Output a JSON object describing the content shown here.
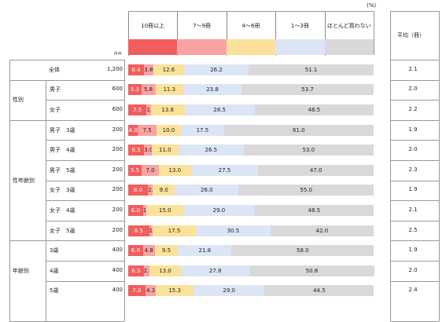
{
  "unit_label": "(%)",
  "n_header": "n=",
  "avg_header": "平均（冊）",
  "colors": {
    "c10plus": "#f25d5d",
    "c7to9": "#f7a3a3",
    "c4to6": "#fbe29a",
    "c1to3": "#dce5f3",
    "cnone": "#d9d9d9"
  },
  "chart_data": {
    "type": "bar",
    "orientation": "horizontal",
    "stacked": true,
    "xlim": [
      0,
      100
    ],
    "categories": [
      10,
      7,
      4,
      1,
      0
    ],
    "legend": [
      "10冊以上",
      "7～9冊",
      "4～6冊",
      "1～3冊",
      "ほとんど買わない"
    ],
    "groups": [
      {
        "label": "",
        "rows": [
          {
            "label": "全体",
            "n": "1,200",
            "values": [
              6.4,
              3.8,
              12.6,
              26.2,
              51.1
            ],
            "avg": "2.1"
          }
        ]
      },
      {
        "label": "性別",
        "rows": [
          {
            "label": "男子",
            "n": "600",
            "values": [
              5.3,
              5.8,
              11.3,
              23.8,
              53.7
            ],
            "avg": "2.0"
          },
          {
            "label": "女子",
            "n": "600",
            "values": [
              7.5,
              1.7,
              13.8,
              28.5,
              48.5
            ],
            "avg": "2.2"
          }
        ]
      },
      {
        "label": "性年齢別",
        "rows": [
          {
            "label": "男子　3歳",
            "n": "200",
            "values": [
              4.0,
              7.5,
              10.0,
              17.5,
              61.0
            ],
            "avg": "1.9"
          },
          {
            "label": "男子　4歳",
            "n": "200",
            "values": [
              6.5,
              3.0,
              11.0,
              26.5,
              53.0
            ],
            "avg": "2.0"
          },
          {
            "label": "男子　5歳",
            "n": "200",
            "values": [
              5.5,
              7.0,
              13.0,
              27.5,
              47.0
            ],
            "avg": "2.3"
          },
          {
            "label": "女子　3歳",
            "n": "200",
            "values": [
              8.0,
              2.0,
              9.0,
              26.0,
              55.0
            ],
            "avg": "1.9"
          },
          {
            "label": "女子　4歳",
            "n": "200",
            "values": [
              6.0,
              1.5,
              15.0,
              29.0,
              48.5
            ],
            "avg": "2.1"
          },
          {
            "label": "女子　5歳",
            "n": "200",
            "values": [
              8.5,
              1.5,
              17.5,
              30.5,
              42.0
            ],
            "avg": "2.5"
          }
        ]
      },
      {
        "label": "年齢別",
        "rows": [
          {
            "label": "3歳",
            "n": "400",
            "values": [
              6.0,
              4.8,
              9.5,
              21.8,
              58.0
            ],
            "avg": "1.9"
          },
          {
            "label": "4歳",
            "n": "400",
            "values": [
              6.3,
              2.3,
              13.0,
              27.8,
              50.8
            ],
            "avg": "2.0"
          },
          {
            "label": "5歳",
            "n": "400",
            "values": [
              7.0,
              4.3,
              15.3,
              29.0,
              44.5
            ],
            "avg": "2.4"
          }
        ]
      }
    ]
  }
}
